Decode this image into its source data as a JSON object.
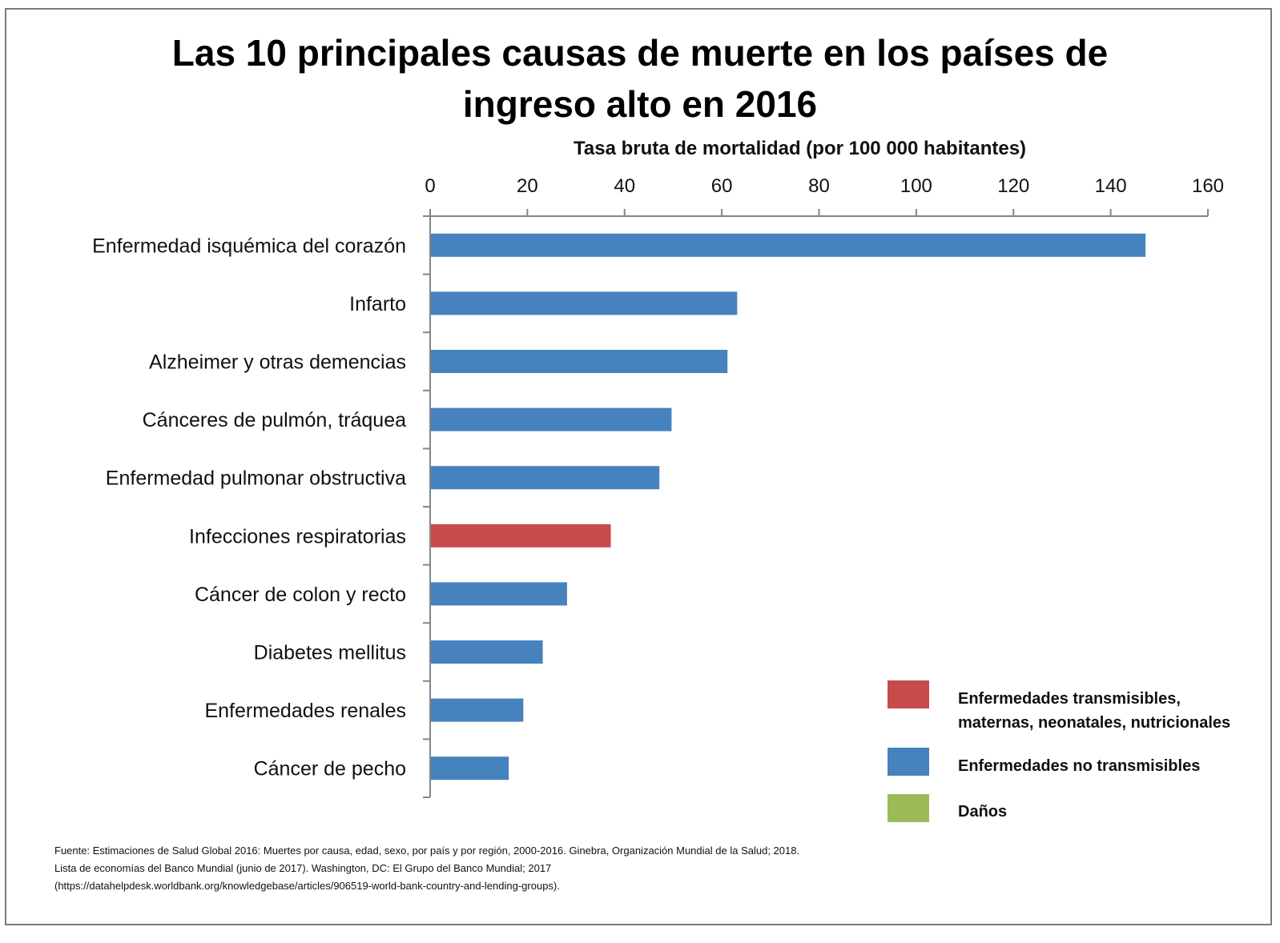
{
  "chart_data": {
    "type": "bar",
    "orientation": "horizontal",
    "title_lines": [
      "Las 10 principales causas de muerte en los países de",
      "ingreso alto en 2016"
    ],
    "xlabel": "Tasa  bruta de mortalidad  (por 100 000 habitantes)",
    "ylabel": "",
    "xlim": [
      0,
      160
    ],
    "xticks": [
      0,
      20,
      40,
      60,
      80,
      100,
      120,
      140,
      160
    ],
    "xtick_labels": [
      "0",
      "20",
      "40",
      "60",
      "80",
      "100",
      "120",
      "140",
      "160"
    ],
    "grid": false,
    "categories": [
      "Enfermedad isquémica del corazón",
      "Infarto",
      "Alzheimer y otras demencias",
      "Cánceres de pulmón, tráquea",
      "Enfermedad pulmonar obstructiva",
      "Infecciones respiratorias",
      "Cáncer de colon y recto",
      "Diabetes mellitus",
      "Enfermedades renales",
      "Cáncer de pecho"
    ],
    "values": [
      147,
      63,
      61,
      49.5,
      47,
      37,
      28,
      23,
      19,
      16
    ],
    "groups": [
      "nt",
      "nt",
      "nt",
      "nt",
      "nt",
      "t",
      "nt",
      "nt",
      "nt",
      "nt"
    ],
    "legend_position": "bottom-right",
    "legend": [
      {
        "key": "t",
        "label_lines": [
          "Enfermedades transmisibles,",
          "maternas, neonatales, nutricionales"
        ],
        "color": "#c84b4b"
      },
      {
        "key": "nt",
        "label_lines": [
          "Enfermedades no transmisibles"
        ],
        "color": "#4682bd"
      },
      {
        "key": "d",
        "label_lines": [
          "Daños"
        ],
        "color": "#9bbb59"
      }
    ]
  },
  "source": {
    "lines": [
      "Fuente: Estimaciones de Salud Global 2016: Muertes por causa, edad, sexo, por país y por región, 2000-2016. Ginebra, Organización Mundial de la Salud; 2018.",
      "Lista de economías del Banco Mundial (junio de 2017). Washington, DC: El Grupo del Banco Mundial; 2017",
      " (https://datahelpdesk.worldbank.org/knowledgebase/articles/906519-world-bank-country-and-lending-groups)."
    ]
  }
}
